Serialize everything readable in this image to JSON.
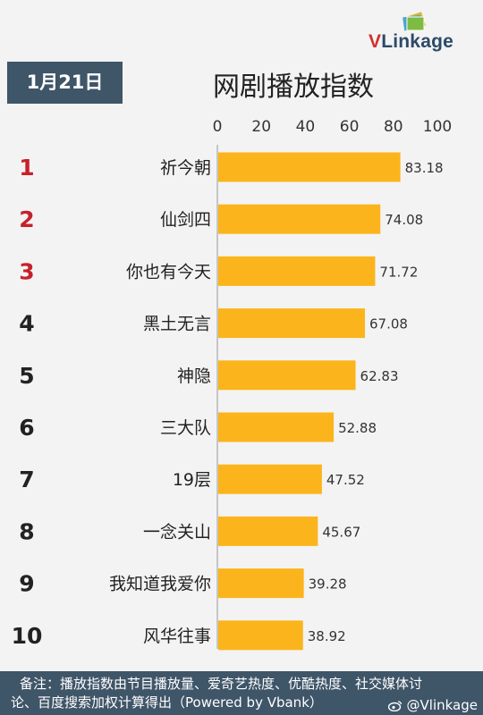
{
  "logo": {
    "v": "V",
    "rest": "Linkage"
  },
  "date": "1月21日",
  "title": "网剧播放指数",
  "chart_data": {
    "type": "bar",
    "orientation": "horizontal",
    "title": "网剧播放指数",
    "xlim": [
      0,
      100
    ],
    "xticks": [
      0,
      20,
      40,
      60,
      80,
      100
    ],
    "ranks": [
      "1",
      "2",
      "3",
      "4",
      "5",
      "6",
      "7",
      "8",
      "9",
      "10"
    ],
    "categories": [
      "祈今朝",
      "仙剑四",
      "你也有今天",
      "黑土无言",
      "神隐",
      "三大队",
      "19层",
      "一念关山",
      "我知道我爱你",
      "风华往事"
    ],
    "values": [
      83.18,
      74.08,
      71.72,
      67.08,
      62.83,
      52.88,
      47.52,
      45.67,
      39.28,
      38.92
    ],
    "value_labels": [
      "83.18",
      "74.08",
      "71.72",
      "67.08",
      "62.83",
      "52.88",
      "47.52",
      "45.67",
      "39.28",
      "38.92"
    ],
    "bar_color": "#fbb41b",
    "top_rank_color": "#c8202a",
    "rank_color": "#222222",
    "axis_position": "top",
    "grid": false
  },
  "footer": {
    "line1": "备注：播放指数由节目播放量、爱奇艺热度、优酷热度、社交媒体讨",
    "line2": "论、百度搜索加权计算得出（Powered by Vbank）"
  },
  "watermark": "@Vlinkage"
}
